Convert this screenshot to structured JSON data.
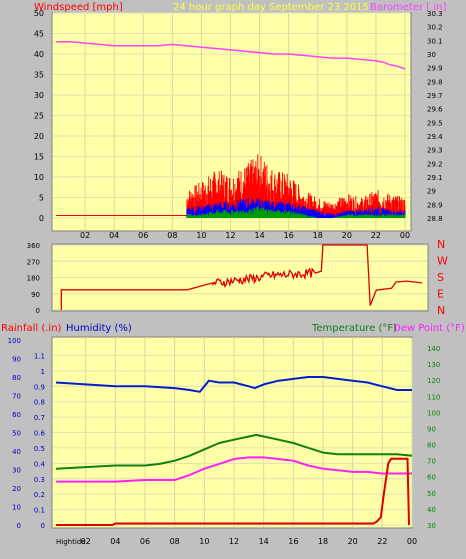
{
  "header": {
    "left_title": "Windspeed [mph]",
    "center_title": "24 hour graph day   September 23 2015",
    "right_title": "Barometer [ in]"
  },
  "middle": {
    "dir_labels": [
      "N",
      "W",
      "S",
      "E",
      "N"
    ]
  },
  "bottom_header": {
    "rain_label": "Rainfall (.in)",
    "humidity_label": "Humidity (%)",
    "temperature_label": "Temperature (°F)",
    "dewpoint_label": "Dew Point (°F)"
  },
  "footer": {
    "hightide_label": "Hightide"
  },
  "x_ticks": [
    "02",
    "04",
    "06",
    "08",
    "10",
    "12",
    "14",
    "16",
    "18",
    "20",
    "22",
    "00"
  ],
  "colors": {
    "plot_bg": "#ffffa8",
    "frame_bg": "#c0c0c0",
    "gust": "#ff0000",
    "wind_avg": "#0000ff",
    "wind_low": "#00a000",
    "barometer": "#ff40ff",
    "direction": "#dd0000",
    "humidity": "#0020d0",
    "temperature": "#108010",
    "dewpoint": "#ff20ff",
    "rain": "#dd0000"
  },
  "chart_data": [
    {
      "type": "line",
      "name": "top-wind-barometer",
      "x_range": [
        0,
        24
      ],
      "ylim": [
        0,
        50
      ],
      "y_ticks": [
        0,
        5,
        10,
        15,
        20,
        25,
        30,
        35,
        40,
        45,
        50
      ],
      "y2lim": [
        28.8,
        30.3
      ],
      "y2_ticks": [
        "28.8",
        "28.9",
        "29",
        "29.1",
        "29.2",
        "29.3",
        "29.4",
        "29.5",
        "29.6",
        "29.7",
        "29.8",
        "29.9",
        "30",
        "30.1",
        "30.2",
        "30.3"
      ],
      "barometer": {
        "x": [
          0,
          1,
          2,
          3,
          4,
          5,
          6,
          7,
          8,
          9,
          10,
          11,
          12,
          13,
          14,
          15,
          16,
          17,
          18,
          19,
          20,
          21,
          22,
          22.5,
          23,
          23.5,
          24
        ],
        "y": [
          30.09,
          30.09,
          30.08,
          30.07,
          30.06,
          30.06,
          30.06,
          30.06,
          30.07,
          30.06,
          30.05,
          30.04,
          30.03,
          30.02,
          30.01,
          30.0,
          30.0,
          29.99,
          29.98,
          29.97,
          29.97,
          29.96,
          29.95,
          29.94,
          29.92,
          29.91,
          29.89
        ]
      },
      "wind_gust_envelope": {
        "x": [
          9,
          10,
          11,
          12,
          13,
          14,
          15,
          16,
          17,
          18,
          19,
          20,
          21,
          22,
          23,
          24
        ],
        "y": [
          7,
          9,
          12,
          11,
          13,
          16,
          12,
          11,
          7,
          5,
          4,
          6,
          5,
          7,
          6,
          5
        ]
      },
      "wind_avg_envelope": {
        "x": [
          9,
          10,
          11,
          12,
          13,
          14,
          15,
          16,
          17,
          18,
          19,
          20,
          21,
          22,
          23,
          24
        ],
        "y": [
          3,
          3,
          4,
          4,
          5,
          5,
          4,
          4,
          3,
          2,
          1,
          2,
          2,
          3,
          2,
          2
        ]
      },
      "wind_low_envelope": {
        "x": [
          9,
          10,
          11,
          12,
          13,
          14,
          15,
          16,
          17,
          18,
          19,
          20,
          21,
          22,
          23,
          24
        ],
        "y": [
          1,
          1,
          2,
          2,
          2,
          3,
          2,
          2,
          1,
          0,
          0,
          1,
          1,
          1,
          1,
          1
        ]
      }
    },
    {
      "type": "line",
      "name": "wind-direction",
      "x_range": [
        0,
        24
      ],
      "ylim": [
        0,
        360
      ],
      "y_ticks": [
        0,
        90,
        180,
        270,
        360
      ],
      "direction": {
        "x": [
          0.35,
          0.35,
          0.5,
          8.6,
          9.2,
          9.8,
          10.3,
          11,
          12,
          13,
          14,
          15,
          16,
          17,
          17.4,
          17.5,
          20.4,
          20.6,
          21,
          22,
          22.3,
          23,
          24
        ],
        "y": [
          0,
          112,
          112,
          112,
          125,
          140,
          150,
          155,
          165,
          175,
          190,
          195,
          200,
          205,
          215,
          360,
          360,
          25,
          110,
          120,
          155,
          160,
          150
        ]
      }
    },
    {
      "type": "line",
      "name": "rain-humidity-temperature",
      "x_range": [
        0,
        24
      ],
      "ylim_rain": [
        0,
        1.2
      ],
      "rain_ticks": [
        "0",
        "0.1",
        "0.2",
        "0.3",
        "0.4",
        "0.5",
        "0.6",
        "0.7",
        "0.8",
        "0.9",
        "1",
        "1.1"
      ],
      "ylim_humidity": [
        0,
        100
      ],
      "humidity_ticks": [
        0,
        10,
        20,
        30,
        40,
        50,
        60,
        70,
        80,
        90,
        100
      ],
      "ylim_temperature": [
        30,
        145
      ],
      "temperature_ticks": [
        30,
        40,
        50,
        60,
        70,
        80,
        90,
        100,
        110,
        120,
        130,
        140
      ],
      "humidity": {
        "x": [
          0,
          2,
          4,
          6,
          8,
          9,
          9.7,
          10.3,
          11,
          12,
          13,
          13.4,
          14,
          15,
          16,
          17,
          18,
          19,
          20,
          21,
          22,
          23,
          24
        ],
        "y": [
          77,
          76,
          75,
          75,
          74,
          73,
          72,
          78,
          77,
          77,
          75,
          74,
          76,
          78,
          79,
          80,
          80,
          79,
          78,
          77,
          75,
          73,
          73
        ]
      },
      "temperature": {
        "x": [
          0,
          2,
          4,
          6,
          7,
          8,
          9,
          10,
          11,
          12,
          13,
          13.5,
          14,
          15,
          16,
          17,
          18,
          19,
          20,
          21,
          22,
          23,
          24
        ],
        "y": [
          65,
          66,
          67,
          67,
          68,
          70,
          73,
          77,
          81,
          83,
          85,
          86,
          85,
          83,
          81,
          78,
          75,
          74,
          74,
          74,
          74,
          74,
          73
        ]
      },
      "dewpoint": {
        "x": [
          0,
          2,
          4,
          6,
          8,
          9,
          10,
          11,
          12,
          13,
          14,
          15,
          16,
          17,
          18,
          19,
          20,
          21,
          22,
          23,
          24
        ],
        "y": [
          57,
          57,
          57,
          58,
          58,
          61,
          65,
          68,
          71,
          72,
          72,
          71,
          70,
          67,
          65,
          64,
          63,
          63,
          62,
          62,
          62
        ]
      },
      "rain": {
        "x": [
          0,
          3.8,
          4,
          21.4,
          21.6,
          21.9,
          22.1,
          22.4,
          22.6,
          23.6,
          23.7,
          23.8
        ],
        "y": [
          0,
          0,
          0.01,
          0.01,
          0.02,
          0.05,
          0.2,
          0.4,
          0.43,
          0.43,
          0.43,
          0
        ]
      }
    }
  ]
}
